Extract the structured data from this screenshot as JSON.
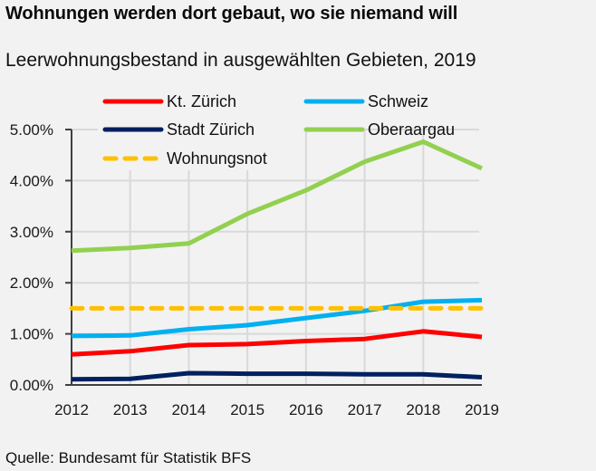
{
  "header": {
    "title": "Wohnungen werden dort gebaut, wo sie niemand will",
    "subtitle": "Leerwohnungsbestand in ausgewählten Gebieten, 2019"
  },
  "footer": {
    "source": "Quelle: Bundesamt für Statistik BFS"
  },
  "chart_data": {
    "type": "line",
    "title": "Wohnungen werden dort gebaut, wo sie niemand will",
    "subtitle": "Leerwohnungsbestand in ausgewählten Gebieten, 2019",
    "xlabel": "",
    "ylabel": "",
    "x": [
      "2012",
      "2013",
      "2014",
      "2015",
      "2016",
      "2017",
      "2018",
      "2019"
    ],
    "ylim": [
      0,
      5
    ],
    "yticks": [
      0,
      1,
      2,
      3,
      4,
      5
    ],
    "ytick_labels": [
      "0.00%",
      "1.00%",
      "2.00%",
      "3.00%",
      "4.00%",
      "5.00%"
    ],
    "grid": true,
    "legend_position": "top",
    "series": [
      {
        "name": "Kt. Zürich",
        "color": "#ff0000",
        "dashed": false,
        "values": [
          0.6,
          0.66,
          0.78,
          0.8,
          0.86,
          0.9,
          1.05,
          0.94
        ]
      },
      {
        "name": "Schweiz",
        "color": "#00b0f0",
        "dashed": false,
        "values": [
          0.96,
          0.97,
          1.09,
          1.17,
          1.31,
          1.45,
          1.63,
          1.66
        ]
      },
      {
        "name": "Stadt Zürich",
        "color": "#002060",
        "dashed": false,
        "values": [
          0.11,
          0.12,
          0.23,
          0.22,
          0.22,
          0.21,
          0.21,
          0.15
        ]
      },
      {
        "name": "Oberaargau",
        "color": "#92d050",
        "dashed": false,
        "values": [
          2.63,
          2.68,
          2.77,
          3.35,
          3.81,
          4.37,
          4.76,
          4.24
        ]
      },
      {
        "name": "Wohnungsnot",
        "color": "#ffc000",
        "dashed": true,
        "values": [
          1.5,
          1.5,
          1.5,
          1.5,
          1.5,
          1.5,
          1.5,
          1.5
        ]
      }
    ],
    "legend": [
      {
        "name": "Kt. Zürich",
        "color": "#ff0000",
        "dashed": false
      },
      {
        "name": "Schweiz",
        "color": "#00b0f0",
        "dashed": false
      },
      {
        "name": "Stadt Zürich",
        "color": "#002060",
        "dashed": false
      },
      {
        "name": "Oberaargau",
        "color": "#92d050",
        "dashed": false
      },
      {
        "name": "Wohnungsnot",
        "color": "#ffc000",
        "dashed": true
      }
    ]
  }
}
